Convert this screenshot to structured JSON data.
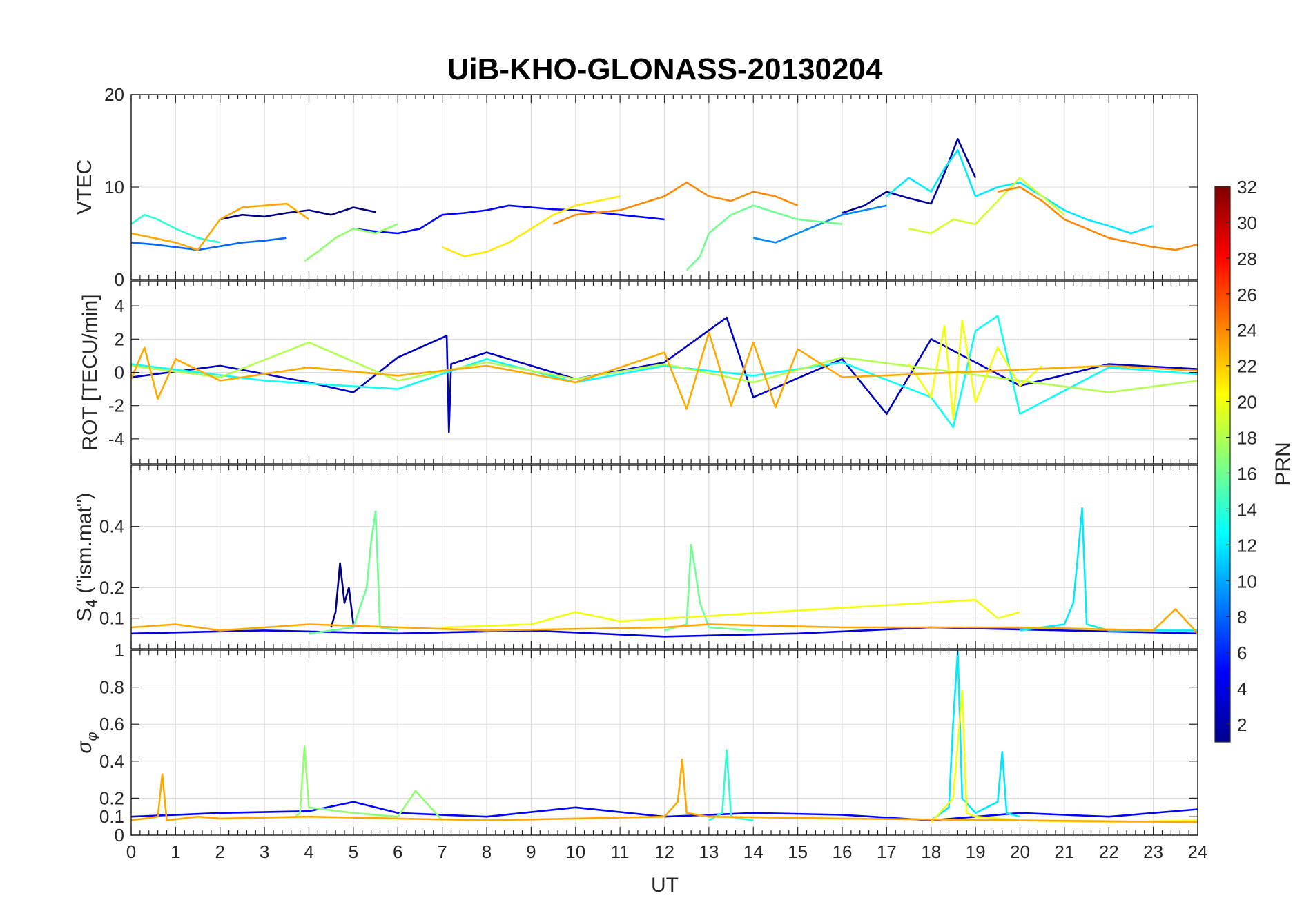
{
  "figure": {
    "title": "UiB-KHO-GLONASS-20130204",
    "xlabel": "UT",
    "x_ticks": [
      "0",
      "1",
      "2",
      "3",
      "4",
      "5",
      "6",
      "7",
      "8",
      "9",
      "10",
      "11",
      "12",
      "13",
      "14",
      "15",
      "16",
      "17",
      "18",
      "19",
      "20",
      "21",
      "22",
      "23",
      "24"
    ]
  },
  "colorbar": {
    "label": "PRN",
    "ticks": [
      "2",
      "4",
      "6",
      "8",
      "10",
      "12",
      "14",
      "16",
      "18",
      "20",
      "22",
      "24",
      "26",
      "28",
      "30",
      "32"
    ],
    "range": [
      1,
      32
    ],
    "colormap": "jet"
  },
  "chart_data": [
    {
      "type": "line",
      "panel": "vtec",
      "ylabel": "VTEC",
      "x_range": [
        0,
        24
      ],
      "ylim": [
        0,
        20
      ],
      "y_ticks": [
        "0",
        "10",
        "20"
      ],
      "grid": true,
      "series": [
        {
          "prn": 1,
          "x": [
            2.0,
            2.5,
            3.0,
            3.5,
            4.0,
            4.5,
            5.0,
            5.5
          ],
          "y": [
            6.5,
            7.0,
            6.8,
            7.2,
            7.5,
            7.0,
            7.8,
            7.3
          ]
        },
        {
          "prn": 2,
          "x": [
            16.0,
            16.5,
            17.0,
            17.5,
            18.0,
            18.3,
            18.6,
            19.0
          ],
          "y": [
            7.2,
            8.0,
            9.5,
            8.8,
            8.2,
            11.5,
            15.2,
            11.0
          ]
        },
        {
          "prn": 5,
          "x": [
            5.0,
            5.5,
            6.0,
            6.5,
            7.0,
            7.5,
            8.0,
            8.5,
            9.0,
            9.5,
            10.0,
            11.0,
            12.0
          ],
          "y": [
            5.5,
            5.2,
            5.0,
            5.5,
            7.0,
            7.2,
            7.5,
            8.0,
            7.8,
            7.6,
            7.5,
            7.0,
            6.5
          ]
        },
        {
          "prn": 8,
          "x": [
            0.0,
            0.5,
            1.0,
            1.5,
            2.0,
            2.5,
            3.0,
            3.5
          ],
          "y": [
            4.0,
            3.8,
            3.5,
            3.2,
            3.6,
            4.0,
            4.2,
            4.5
          ]
        },
        {
          "prn": 9,
          "x": [
            14.0,
            14.5,
            15.0,
            15.5,
            16.0,
            16.5,
            17.0
          ],
          "y": [
            4.5,
            4.0,
            5.0,
            6.0,
            7.0,
            7.5,
            8.0
          ]
        },
        {
          "prn": 12,
          "x": [
            17.0,
            17.5,
            18.0,
            18.3,
            18.6,
            19.0,
            19.5,
            20.0,
            20.5,
            21.0,
            21.5,
            22.0,
            22.5,
            23.0
          ],
          "y": [
            9.0,
            11.0,
            9.5,
            12.0,
            14.0,
            9.0,
            10.0,
            10.5,
            9.0,
            7.5,
            6.5,
            5.8,
            5.0,
            5.8
          ]
        },
        {
          "prn": 14,
          "x": [
            0.0,
            0.3,
            0.6,
            1.0,
            1.5,
            2.0
          ],
          "y": [
            6.0,
            7.0,
            6.5,
            5.5,
            4.5,
            4.0
          ]
        },
        {
          "prn": 16,
          "x": [
            12.5,
            12.8,
            13.0,
            13.5,
            14.0,
            15.0,
            16.0
          ],
          "y": [
            1.0,
            2.5,
            5.0,
            7.0,
            8.0,
            6.5,
            6.0
          ]
        },
        {
          "prn": 17,
          "x": [
            3.9,
            4.2,
            4.6,
            5.0,
            5.5,
            6.0
          ],
          "y": [
            2.0,
            3.0,
            4.5,
            5.5,
            5.0,
            6.0
          ]
        },
        {
          "prn": 19,
          "x": [
            17.5,
            18.0,
            18.5,
            19.0,
            19.5,
            20.0,
            20.5,
            21.0
          ],
          "y": [
            5.5,
            5.0,
            6.5,
            6.0,
            8.5,
            11.0,
            9.0,
            7.0
          ]
        },
        {
          "prn": 21,
          "x": [
            7.0,
            7.5,
            8.0,
            8.5,
            9.0,
            9.5,
            10.0,
            10.5,
            11.0
          ],
          "y": [
            3.5,
            2.5,
            3.0,
            4.0,
            5.5,
            7.0,
            8.0,
            8.5,
            9.0
          ]
        },
        {
          "prn": 23,
          "x": [
            0.0,
            0.5,
            1.0,
            1.5,
            2.0,
            2.5,
            3.0,
            3.5,
            4.0
          ],
          "y": [
            5.0,
            4.5,
            4.0,
            3.2,
            6.5,
            7.8,
            8.0,
            8.2,
            6.5
          ]
        },
        {
          "prn": 24,
          "x": [
            9.5,
            10.0,
            11.0,
            12.0,
            12.5,
            13.0,
            13.5,
            14.0,
            14.5,
            15.0
          ],
          "y": [
            6.0,
            7.0,
            7.5,
            9.0,
            10.5,
            9.0,
            8.5,
            9.5,
            9.0,
            8.0
          ]
        },
        {
          "prn": 24,
          "x": [
            19.5,
            20.0,
            20.5,
            21.0,
            21.5,
            22.0,
            22.5,
            23.0,
            23.5,
            24.0
          ],
          "y": [
            9.5,
            10.0,
            8.5,
            6.5,
            5.5,
            4.5,
            4.0,
            3.5,
            3.2,
            3.8
          ]
        }
      ]
    },
    {
      "type": "line",
      "panel": "rot",
      "ylabel": "ROT [TECU/min]",
      "x_range": [
        0,
        24
      ],
      "ylim": [
        -5.5,
        5.5
      ],
      "y_ticks": [
        "-4",
        "-2",
        "0",
        "2",
        "4"
      ],
      "grid": true,
      "series": [
        {
          "prn": 3,
          "x": [
            0.0,
            2.0,
            4.0,
            5.0,
            6.0,
            7.1,
            7.15,
            7.2,
            8.0,
            10.0,
            12.0,
            13.4,
            14.0,
            16.0,
            17.0,
            18.0,
            20.0,
            22.0,
            24.0
          ],
          "y": [
            -0.3,
            0.4,
            -0.6,
            -1.2,
            0.9,
            2.2,
            -3.6,
            0.5,
            1.2,
            -0.4,
            0.6,
            3.3,
            -1.5,
            0.8,
            -2.5,
            2.0,
            -0.8,
            0.5,
            0.2
          ]
        },
        {
          "prn": 13,
          "x": [
            0.0,
            3.0,
            6.0,
            8.0,
            10.0,
            12.0,
            14.0,
            16.0,
            18.0,
            18.5,
            19.0,
            19.5,
            20.0,
            22.0,
            24.0
          ],
          "y": [
            0.5,
            -0.5,
            -1.0,
            0.8,
            -0.6,
            0.4,
            -0.2,
            0.6,
            -1.5,
            -3.3,
            2.5,
            3.4,
            -2.5,
            0.3,
            -0.1
          ]
        },
        {
          "prn": 18,
          "x": [
            0.0,
            2.0,
            4.0,
            6.0,
            8.0,
            10.0,
            12.0,
            14.0,
            16.0,
            22.0,
            24.0
          ],
          "y": [
            0.4,
            -0.3,
            1.8,
            -0.5,
            0.6,
            -0.4,
            0.5,
            -0.6,
            0.9,
            -1.2,
            -0.5
          ]
        },
        {
          "prn": 20,
          "x": [
            17.5,
            18.0,
            18.3,
            18.5,
            18.7,
            19.0,
            19.5,
            20.0,
            20.5
          ],
          "y": [
            0.5,
            -1.5,
            2.8,
            -2.8,
            3.1,
            -1.8,
            1.5,
            -0.8,
            0.4
          ]
        },
        {
          "prn": 23,
          "x": [
            0.0,
            0.3,
            0.6,
            1.0,
            2.0,
            4.0,
            6.0,
            8.0,
            10.0,
            12.0,
            12.5,
            13.0,
            13.5,
            14.0,
            14.5,
            15.0,
            16.0,
            22.0,
            24.0
          ],
          "y": [
            -0.4,
            1.5,
            -1.6,
            0.8,
            -0.5,
            0.3,
            -0.2,
            0.4,
            -0.6,
            1.2,
            -2.2,
            2.4,
            -2.0,
            1.8,
            -2.1,
            1.4,
            -0.3,
            0.4,
            0.1
          ]
        }
      ]
    },
    {
      "type": "line",
      "panel": "s4",
      "ylabel": "S4 (\"ism.mat\")",
      "x_range": [
        0,
        24
      ],
      "ylim": [
        0,
        0.6
      ],
      "y_ticks": [
        "0.1",
        "0.2",
        "0.4"
      ],
      "grid": true,
      "series": [
        {
          "prn": 1,
          "x": [
            4.5,
            4.6,
            4.7,
            4.8,
            4.9,
            5.0
          ],
          "y": [
            0.07,
            0.12,
            0.28,
            0.15,
            0.2,
            0.08
          ]
        },
        {
          "prn": 4,
          "x": [
            0.0,
            3.0,
            6.0,
            9.0,
            12.0,
            15.0,
            18.0,
            21.0,
            24.0
          ],
          "y": [
            0.05,
            0.06,
            0.05,
            0.06,
            0.04,
            0.05,
            0.07,
            0.06,
            0.05
          ]
        },
        {
          "prn": 12,
          "x": [
            20.0,
            20.5,
            21.0,
            21.2,
            21.3,
            21.4,
            21.5,
            22.0,
            24.0
          ],
          "y": [
            0.06,
            0.07,
            0.08,
            0.15,
            0.3,
            0.46,
            0.08,
            0.06,
            0.06
          ]
        },
        {
          "prn": 16,
          "x": [
            4.0,
            4.5,
            5.0,
            5.3,
            5.4,
            5.5,
            5.6,
            6.0
          ],
          "y": [
            0.05,
            0.06,
            0.07,
            0.2,
            0.35,
            0.45,
            0.07,
            0.06
          ]
        },
        {
          "prn": 16,
          "x": [
            12.0,
            12.5,
            12.6,
            12.7,
            12.8,
            13.0,
            14.0
          ],
          "y": [
            0.06,
            0.08,
            0.34,
            0.25,
            0.15,
            0.07,
            0.06
          ]
        },
        {
          "prn": 20,
          "x": [
            7.0,
            9.0,
            10.0,
            11.0,
            19.0,
            19.5,
            20.0
          ],
          "y": [
            0.07,
            0.08,
            0.12,
            0.09,
            0.16,
            0.1,
            0.12
          ]
        },
        {
          "prn": 23,
          "x": [
            0.0,
            1.0,
            2.0,
            3.0,
            4.0,
            8.0,
            12.0,
            13.0,
            16.0,
            20.0,
            23.0,
            23.5,
            24.0
          ],
          "y": [
            0.07,
            0.08,
            0.06,
            0.07,
            0.08,
            0.06,
            0.07,
            0.08,
            0.07,
            0.07,
            0.06,
            0.13,
            0.05
          ]
        }
      ]
    },
    {
      "type": "line",
      "panel": "sigma_phi",
      "ylabel": "σφ",
      "x_range": [
        0,
        24
      ],
      "ylim": [
        0,
        1
      ],
      "y_ticks": [
        "0",
        "0.1",
        "0.2",
        "0.4",
        "0.6",
        "0.8",
        "1"
      ],
      "grid": true,
      "series": [
        {
          "prn": 5,
          "x": [
            0.0,
            2.0,
            4.0,
            5.0,
            6.0,
            8.0,
            10.0,
            12.0,
            14.0,
            16.0,
            18.0,
            20.0,
            22.0,
            24.0
          ],
          "y": [
            0.1,
            0.12,
            0.13,
            0.18,
            0.12,
            0.1,
            0.15,
            0.1,
            0.12,
            0.11,
            0.08,
            0.12,
            0.1,
            0.14
          ]
        },
        {
          "prn": 12,
          "x": [
            18.0,
            18.4,
            18.5,
            18.6,
            18.7,
            19.0,
            19.5,
            19.6,
            19.7,
            20.0
          ],
          "y": [
            0.08,
            0.15,
            0.62,
            1.0,
            0.2,
            0.12,
            0.18,
            0.45,
            0.12,
            0.1
          ]
        },
        {
          "prn": 14,
          "x": [
            13.0,
            13.3,
            13.4,
            13.5,
            13.7,
            14.0
          ],
          "y": [
            0.08,
            0.12,
            0.46,
            0.1,
            0.09,
            0.08
          ]
        },
        {
          "prn": 17,
          "x": [
            3.7,
            3.8,
            3.9,
            4.0,
            5.0,
            6.0,
            6.4,
            7.0
          ],
          "y": [
            0.1,
            0.12,
            0.48,
            0.15,
            0.12,
            0.1,
            0.24,
            0.08
          ]
        },
        {
          "prn": 20,
          "x": [
            18.0,
            18.5,
            18.7,
            18.8,
            19.0,
            20.0,
            22.0,
            24.0
          ],
          "y": [
            0.07,
            0.2,
            0.78,
            0.12,
            0.1,
            0.08,
            0.07,
            0.08
          ]
        },
        {
          "prn": 23,
          "x": [
            0.0,
            0.6,
            0.7,
            0.8,
            1.5,
            2.0,
            4.0,
            8.0,
            12.0,
            12.3,
            12.4,
            12.5,
            13.0,
            16.0,
            20.0,
            24.0
          ],
          "y": [
            0.08,
            0.1,
            0.33,
            0.08,
            0.1,
            0.09,
            0.1,
            0.08,
            0.1,
            0.18,
            0.41,
            0.12,
            0.1,
            0.09,
            0.08,
            0.07
          ]
        }
      ]
    }
  ]
}
